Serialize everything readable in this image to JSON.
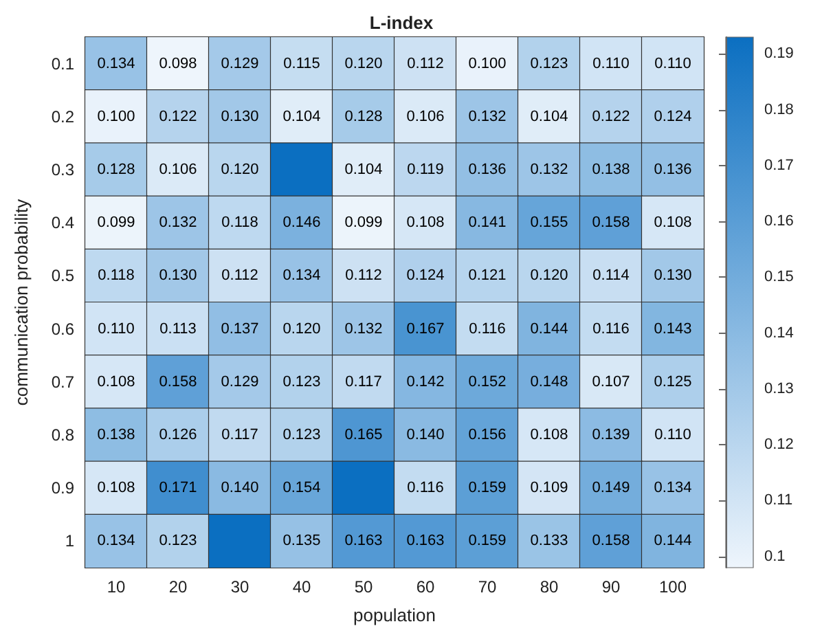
{
  "chart_data": {
    "type": "heatmap",
    "title": "L-index",
    "xlabel": "population",
    "ylabel": "communication probability",
    "categories": [
      "10",
      "20",
      "30",
      "40",
      "50",
      "60",
      "70",
      "80",
      "90",
      "100"
    ],
    "y_categories": [
      "0.1",
      "0.2",
      "0.3",
      "0.4",
      "0.5",
      "0.6",
      "0.7",
      "0.8",
      "0.9",
      "1"
    ],
    "cells": [
      [
        0.134,
        0.098,
        0.129,
        0.115,
        0.12,
        0.112,
        0.1,
        0.123,
        0.11,
        0.11
      ],
      [
        0.1,
        0.122,
        0.13,
        0.104,
        0.128,
        0.106,
        0.132,
        0.104,
        0.122,
        0.124
      ],
      [
        0.128,
        0.106,
        0.12,
        0.193,
        0.104,
        0.119,
        0.136,
        0.132,
        0.138,
        0.136
      ],
      [
        0.099,
        0.132,
        0.118,
        0.146,
        0.099,
        0.108,
        0.141,
        0.155,
        0.158,
        0.108
      ],
      [
        0.118,
        0.13,
        0.112,
        0.134,
        0.112,
        0.124,
        0.121,
        0.12,
        0.114,
        0.13
      ],
      [
        0.11,
        0.113,
        0.137,
        0.12,
        0.132,
        0.167,
        0.116,
        0.144,
        0.116,
        0.143
      ],
      [
        0.108,
        0.158,
        0.129,
        0.123,
        0.117,
        0.142,
        0.152,
        0.148,
        0.107,
        0.125
      ],
      [
        0.138,
        0.126,
        0.117,
        0.123,
        0.165,
        0.14,
        0.156,
        0.108,
        0.139,
        0.11
      ],
      [
        0.108,
        0.171,
        0.14,
        0.154,
        0.193,
        0.116,
        0.159,
        0.109,
        0.149,
        0.134
      ],
      [
        0.134,
        0.123,
        0.193,
        0.135,
        0.163,
        0.163,
        0.159,
        0.133,
        0.158,
        0.144
      ]
    ],
    "cell_labels": [
      [
        "0.134",
        "0.098",
        "0.129",
        "0.115",
        "0.120",
        "0.112",
        "0.100",
        "0.123",
        "0.110",
        "0.110"
      ],
      [
        "0.100",
        "0.122",
        "0.130",
        "0.104",
        "0.128",
        "0.106",
        "0.132",
        "0.104",
        "0.122",
        "0.124"
      ],
      [
        "0.128",
        "0.106",
        "0.120",
        null,
        "0.104",
        "0.119",
        "0.136",
        "0.132",
        "0.138",
        "0.136"
      ],
      [
        "0.099",
        "0.132",
        "0.118",
        "0.146",
        "0.099",
        "0.108",
        "0.141",
        "0.155",
        "0.158",
        "0.108"
      ],
      [
        "0.118",
        "0.130",
        "0.112",
        "0.134",
        "0.112",
        "0.124",
        "0.121",
        "0.120",
        "0.114",
        "0.130"
      ],
      [
        "0.110",
        "0.113",
        "0.137",
        "0.120",
        "0.132",
        "0.167",
        "0.116",
        "0.144",
        "0.116",
        "0.143"
      ],
      [
        "0.108",
        "0.158",
        "0.129",
        "0.123",
        "0.117",
        "0.142",
        "0.152",
        "0.148",
        "0.107",
        "0.125"
      ],
      [
        "0.138",
        "0.126",
        "0.117",
        "0.123",
        "0.165",
        "0.140",
        "0.156",
        "0.108",
        "0.139",
        "0.110"
      ],
      [
        "0.108",
        "0.171",
        "0.140",
        "0.154",
        null,
        "0.116",
        "0.159",
        "0.109",
        "0.149",
        "0.134"
      ],
      [
        "0.134",
        "0.123",
        null,
        "0.135",
        "0.163",
        "0.163",
        "0.159",
        "0.133",
        "0.158",
        "0.144"
      ]
    ],
    "colors": [
      "#eef5fc",
      "#0b6fc1"
    ],
    "clim": [
      0.098,
      0.193
    ],
    "cticks": [
      0.1,
      0.11,
      0.12,
      0.13,
      0.14,
      0.15,
      0.16,
      0.17,
      0.18,
      0.19
    ]
  }
}
